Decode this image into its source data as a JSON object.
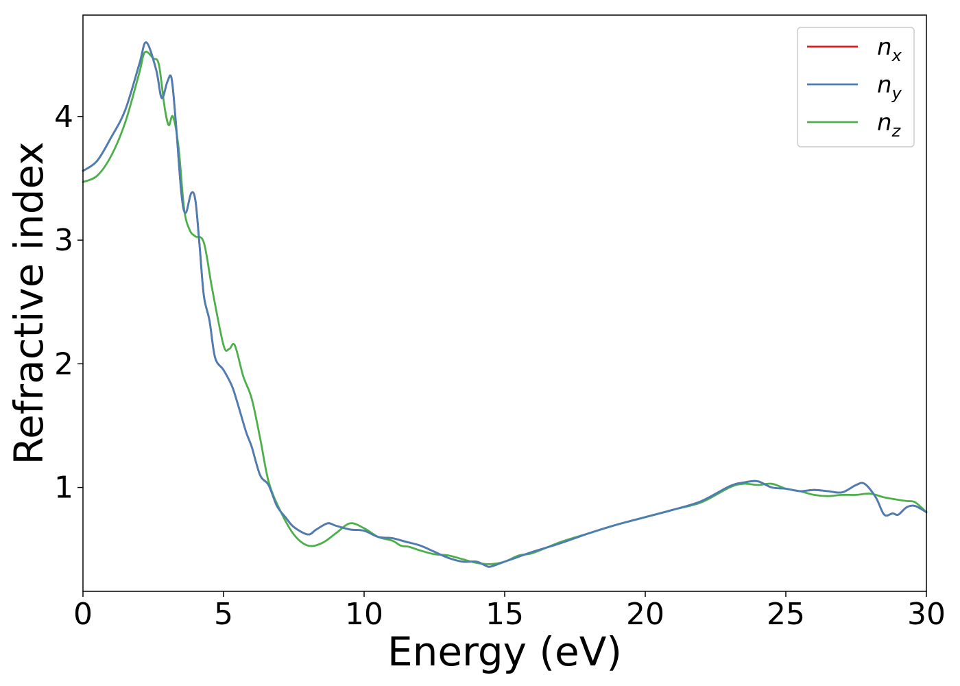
{
  "chart_data": {
    "type": "line",
    "title": "",
    "xlabel": "Energy (eV)",
    "ylabel": "Refractive index",
    "xlim": [
      0,
      30
    ],
    "ylim": [
      0.16,
      4.82
    ],
    "xticks": [
      0,
      5,
      10,
      15,
      20,
      25,
      30
    ],
    "yticks": [
      1,
      2,
      3,
      4
    ],
    "grid": false,
    "legend_position": "top-right",
    "series": [
      {
        "name": "n_x",
        "base": "n",
        "sub": "x",
        "color": "#e41a1c",
        "x": [
          0,
          0.5,
          1.0,
          1.5,
          2.0,
          2.25,
          2.6,
          2.8,
          3.0,
          3.15,
          3.3,
          3.5,
          3.65,
          3.85,
          4.0,
          4.15,
          4.3,
          4.5,
          4.7,
          5.0,
          5.3,
          5.5,
          5.8,
          6.0,
          6.3,
          6.6,
          6.9,
          7.2,
          7.5,
          8.0,
          8.3,
          8.7,
          9.0,
          9.5,
          10.0,
          10.5,
          11.0,
          11.5,
          12.0,
          12.5,
          13.0,
          13.5,
          14.0,
          14.3,
          14.5,
          15.0,
          15.5,
          16.0,
          17.0,
          18.0,
          19.0,
          20.0,
          21.0,
          22.0,
          23.0,
          23.5,
          24.0,
          24.5,
          25.0,
          25.5,
          26.0,
          26.5,
          27.0,
          27.5,
          27.8,
          28.2,
          28.5,
          28.8,
          29.0,
          29.3,
          29.6,
          30.0
        ],
        "y": [
          3.56,
          3.64,
          3.83,
          4.05,
          4.42,
          4.6,
          4.38,
          4.15,
          4.28,
          4.31,
          3.96,
          3.38,
          3.22,
          3.38,
          3.32,
          2.95,
          2.55,
          2.35,
          2.05,
          1.95,
          1.82,
          1.68,
          1.45,
          1.33,
          1.1,
          1.02,
          0.85,
          0.76,
          0.68,
          0.62,
          0.66,
          0.71,
          0.69,
          0.66,
          0.65,
          0.6,
          0.59,
          0.56,
          0.53,
          0.48,
          0.43,
          0.4,
          0.4,
          0.37,
          0.36,
          0.4,
          0.44,
          0.48,
          0.55,
          0.63,
          0.7,
          0.76,
          0.82,
          0.89,
          1.01,
          1.04,
          1.05,
          1.0,
          0.99,
          0.97,
          0.98,
          0.97,
          0.96,
          1.02,
          1.03,
          0.92,
          0.78,
          0.79,
          0.78,
          0.84,
          0.85,
          0.8
        ]
      },
      {
        "name": "n_y",
        "base": "n",
        "sub": "y",
        "color": "#4a7fb5",
        "x": [
          0,
          0.5,
          1.0,
          1.5,
          2.0,
          2.25,
          2.6,
          2.8,
          3.0,
          3.15,
          3.3,
          3.5,
          3.65,
          3.85,
          4.0,
          4.15,
          4.3,
          4.5,
          4.7,
          5.0,
          5.3,
          5.5,
          5.8,
          6.0,
          6.3,
          6.6,
          6.9,
          7.2,
          7.5,
          8.0,
          8.3,
          8.7,
          9.0,
          9.5,
          10.0,
          10.5,
          11.0,
          11.5,
          12.0,
          12.5,
          13.0,
          13.5,
          14.0,
          14.3,
          14.5,
          15.0,
          15.5,
          16.0,
          17.0,
          18.0,
          19.0,
          20.0,
          21.0,
          22.0,
          23.0,
          23.5,
          24.0,
          24.5,
          25.0,
          25.5,
          26.0,
          26.5,
          27.0,
          27.5,
          27.8,
          28.2,
          28.5,
          28.8,
          29.0,
          29.3,
          29.6,
          30.0
        ],
        "y": [
          3.56,
          3.64,
          3.83,
          4.05,
          4.42,
          4.6,
          4.38,
          4.15,
          4.28,
          4.31,
          3.96,
          3.38,
          3.22,
          3.38,
          3.32,
          2.95,
          2.55,
          2.35,
          2.05,
          1.95,
          1.82,
          1.68,
          1.45,
          1.33,
          1.1,
          1.02,
          0.85,
          0.76,
          0.68,
          0.62,
          0.66,
          0.71,
          0.69,
          0.66,
          0.65,
          0.6,
          0.59,
          0.56,
          0.53,
          0.48,
          0.43,
          0.4,
          0.4,
          0.37,
          0.36,
          0.4,
          0.44,
          0.48,
          0.55,
          0.63,
          0.7,
          0.76,
          0.82,
          0.89,
          1.01,
          1.04,
          1.05,
          1.0,
          0.99,
          0.97,
          0.98,
          0.97,
          0.96,
          1.02,
          1.03,
          0.92,
          0.78,
          0.79,
          0.78,
          0.84,
          0.85,
          0.8
        ]
      },
      {
        "name": "n_z",
        "base": "n",
        "sub": "z",
        "color": "#4daf4a",
        "x": [
          0,
          0.5,
          1.0,
          1.5,
          2.0,
          2.2,
          2.5,
          2.7,
          2.9,
          3.05,
          3.2,
          3.4,
          3.6,
          3.8,
          4.0,
          4.3,
          4.6,
          5.0,
          5.2,
          5.4,
          5.7,
          6.0,
          6.3,
          6.6,
          7.0,
          7.5,
          8.0,
          8.5,
          9.0,
          9.5,
          10.0,
          10.5,
          11.0,
          11.3,
          11.6,
          12.0,
          12.5,
          13.0,
          13.5,
          14.0,
          14.5,
          15.0,
          15.5,
          16.0,
          17.0,
          18.0,
          19.0,
          20.0,
          21.0,
          22.0,
          23.0,
          23.5,
          24.0,
          24.5,
          25.0,
          25.5,
          26.0,
          26.5,
          27.0,
          27.5,
          28.0,
          28.5,
          29.0,
          29.3,
          29.6,
          30.0
        ],
        "y": [
          3.47,
          3.52,
          3.68,
          3.95,
          4.35,
          4.52,
          4.47,
          4.42,
          4.08,
          3.93,
          4.0,
          3.75,
          3.25,
          3.08,
          3.03,
          2.98,
          2.6,
          2.15,
          2.12,
          2.15,
          1.9,
          1.72,
          1.4,
          1.05,
          0.82,
          0.62,
          0.53,
          0.55,
          0.63,
          0.71,
          0.67,
          0.6,
          0.57,
          0.53,
          0.52,
          0.49,
          0.46,
          0.45,
          0.42,
          0.39,
          0.38,
          0.4,
          0.45,
          0.47,
          0.56,
          0.63,
          0.7,
          0.76,
          0.82,
          0.88,
          1.0,
          1.03,
          1.02,
          1.03,
          0.99,
          0.97,
          0.94,
          0.93,
          0.94,
          0.94,
          0.95,
          0.92,
          0.9,
          0.89,
          0.88,
          0.8
        ]
      }
    ]
  }
}
